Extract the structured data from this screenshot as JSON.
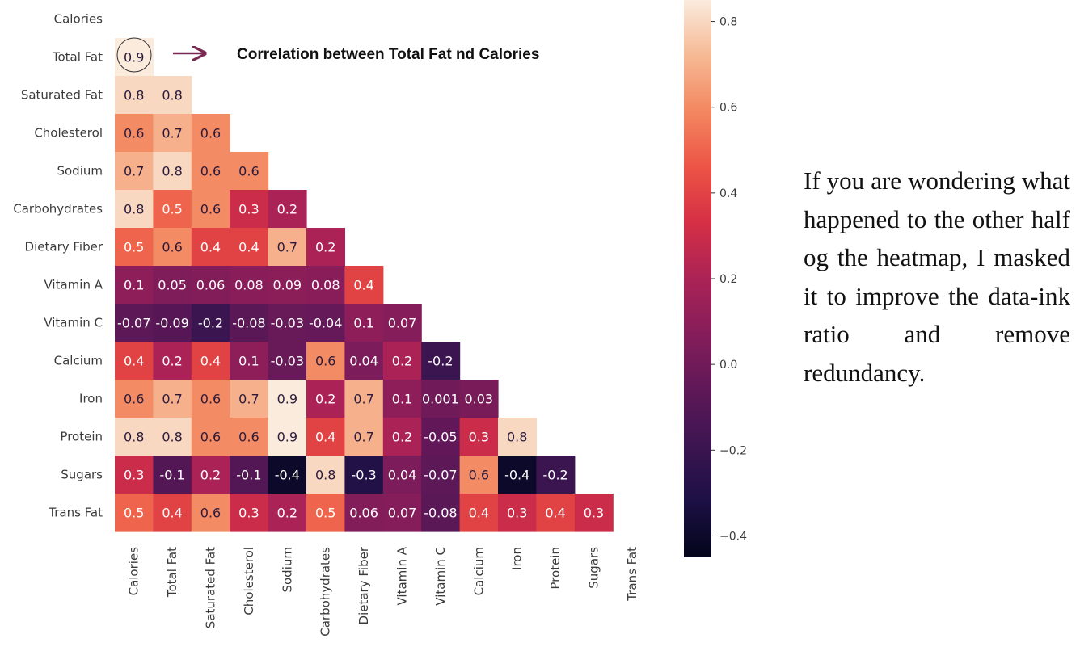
{
  "chart_data": {
    "type": "heatmap",
    "title": "",
    "labels": [
      "Calories",
      "Total Fat",
      "Saturated Fat",
      "Cholesterol",
      "Sodium",
      "Carbohydrates",
      "Dietary Fiber",
      "Vitamin A",
      "Vitamin C",
      "Calcium",
      "Iron",
      "Protein",
      "Sugars",
      "Trans Fat"
    ],
    "mask": "upper-triangle",
    "values": [
      [],
      [
        0.9
      ],
      [
        0.8,
        0.8
      ],
      [
        0.6,
        0.7,
        0.6
      ],
      [
        0.7,
        0.8,
        0.6,
        0.6
      ],
      [
        0.8,
        0.5,
        0.6,
        0.3,
        0.2
      ],
      [
        0.5,
        0.6,
        0.4,
        0.4,
        0.7,
        0.2
      ],
      [
        0.1,
        0.05,
        0.06,
        0.08,
        0.09,
        0.08,
        0.4
      ],
      [
        -0.07,
        -0.09,
        -0.2,
        -0.08,
        -0.03,
        -0.04,
        0.1,
        0.07
      ],
      [
        0.4,
        0.2,
        0.4,
        0.1,
        -0.03,
        0.6,
        0.04,
        0.2,
        -0.2
      ],
      [
        0.6,
        0.7,
        0.6,
        0.7,
        0.9,
        0.2,
        0.7,
        0.1,
        0.001,
        0.03
      ],
      [
        0.8,
        0.8,
        0.6,
        0.6,
        0.9,
        0.4,
        0.7,
        0.2,
        -0.05,
        0.3,
        0.8
      ],
      [
        0.3,
        -0.1,
        0.2,
        -0.1,
        -0.4,
        0.8,
        -0.3,
        0.04,
        -0.07,
        0.6,
        -0.4,
        -0.2
      ],
      [
        0.5,
        0.4,
        0.6,
        0.3,
        0.2,
        0.5,
        0.06,
        0.07,
        -0.08,
        0.4,
        0.3,
        0.4,
        0.3
      ]
    ],
    "colorbar": {
      "range": [
        -0.45,
        0.85
      ],
      "ticks": [
        0.8,
        0.6,
        0.4,
        0.2,
        0.0,
        -0.2,
        -0.4
      ],
      "tick_labels": [
        "0.8",
        "0.6",
        "0.4",
        "0.2",
        "0.0",
        "−0.2",
        "−0.4"
      ],
      "colormap": "rocket"
    },
    "annotation": {
      "text": "Correlation between Total Fat nd Calories",
      "highlight_row": "Total Fat",
      "highlight_col": "Calories",
      "color": "#7a2a52"
    }
  },
  "side_note": "If you are wondering what happened to the other half og the heatmap, I masked it to improve the data-ink ratio and remove redundancy."
}
